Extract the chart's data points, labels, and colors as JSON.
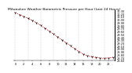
{
  "title": "Milwaukee Weather Barometric Pressure per Hour (Last 24 Hours)",
  "hours": [
    0,
    1,
    2,
    3,
    4,
    5,
    6,
    7,
    8,
    9,
    10,
    11,
    12,
    13,
    14,
    15,
    16,
    17,
    18,
    19,
    20,
    21,
    22,
    23
  ],
  "pressure": [
    30.22,
    30.16,
    30.1,
    30.03,
    29.96,
    29.88,
    29.79,
    29.7,
    29.6,
    29.5,
    29.4,
    29.3,
    29.2,
    29.1,
    29.0,
    28.9,
    28.82,
    28.76,
    28.72,
    28.7,
    28.68,
    28.67,
    28.68,
    28.7
  ],
  "line_color": "#cc0000",
  "marker_color": "#000000",
  "bg_color": "#ffffff",
  "grid_color": "#bbbbbb",
  "title_fontsize": 3.2,
  "tick_fontsize": 2.5,
  "ylim_min": 28.6,
  "ylim_max": 30.3,
  "ytick_step": 0.1,
  "grid_x_positions": [
    0,
    3,
    6,
    9,
    12,
    15,
    18,
    21,
    23
  ]
}
